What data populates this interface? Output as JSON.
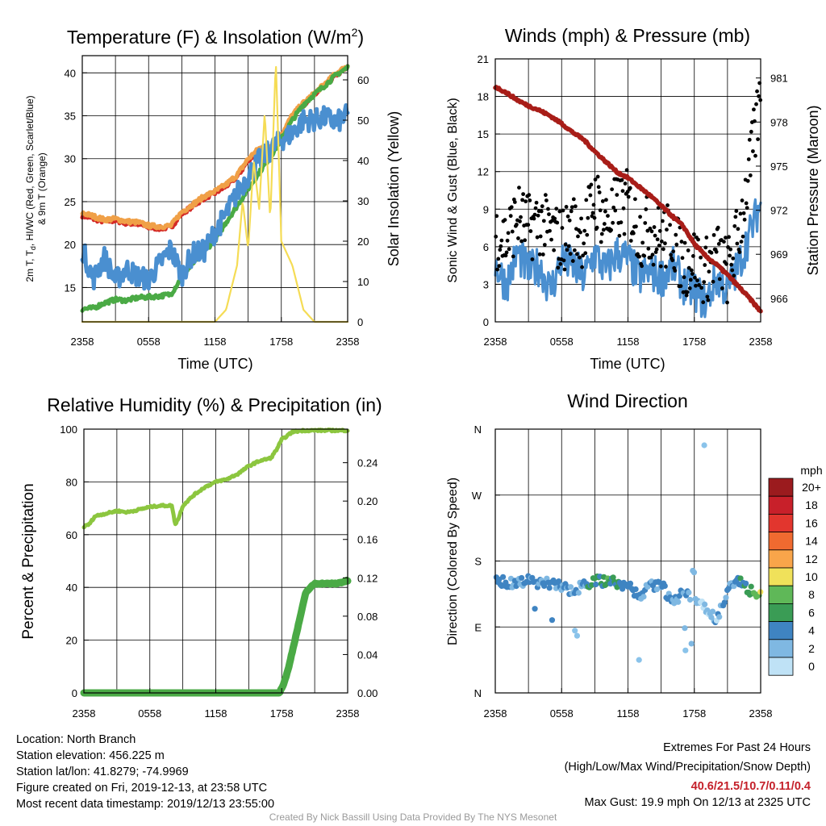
{
  "panels": {
    "temp": {
      "title_main": "Temperature (F) & Insolation (W/m",
      "title_sup": "2",
      "title_end": ")",
      "xlabel": "Time (UTC)",
      "ylabel_line1": "2m T, T",
      "ylabel_sub": "d",
      "ylabel_line1_end": ", HI/WC (Red, Green, Scarlet/Blue)",
      "ylabel_line2": "& 9m T (Orange)",
      "ylabel_right": "Solar Insolation (Yellow)"
    },
    "wind": {
      "title": "Winds (mph) & Pressure (mb)",
      "xlabel": "Time (UTC)",
      "ylabel": "Sonic Wind & Gust (Blue, Black)",
      "ylabel_right": "Station Pressure (Maroon)"
    },
    "rh": {
      "title": "Relative Humidity (%) & Precipitation (in)",
      "ylabel": "Percent & Precipitation"
    },
    "dir": {
      "title": "Wind Direction",
      "ylabel": "Direction (Colored By Speed)",
      "colorbar_title": "mph",
      "colorbar_labels": [
        "20+",
        "18",
        "16",
        "14",
        "12",
        "10",
        "8",
        "6",
        "4",
        "2",
        "0"
      ],
      "colorbar_colors": [
        "#9b1b1e",
        "#c8202a",
        "#e2362e",
        "#f06a30",
        "#f9a54a",
        "#f0e15a",
        "#5fb858",
        "#3a9c55",
        "#3f84c2",
        "#7fb8e2",
        "#bfe2f6"
      ]
    }
  },
  "info": {
    "location": "Location: North Branch",
    "elevation": "Station elevation: 456.225 m",
    "latlon": "Station lat/lon: 41.8279; -74.9969",
    "created": "Figure created on Fri, 2019-12-13, at 23:58 UTC",
    "recent": "Most recent data timestamp: 2019/12/13 23:55:00"
  },
  "extremes": {
    "title": "Extremes For Past 24 Hours",
    "subtitle": "(High/Low/Max Wind/Precipitation/Snow Depth)",
    "values": "40.6/21.5/10.7/0.11/0.4",
    "max_gust": "Max Gust: 19.9 mph On 12/13 at 2325 UTC"
  },
  "credit": "Created By Nick Bassill Using Data Provided By The NYS Mesonet",
  "chart_data": [
    {
      "id": "temperature",
      "type": "line",
      "x_ticks": [
        "2358",
        "0558",
        "1158",
        "1758",
        "2358"
      ],
      "x_range_hours": [
        0,
        24
      ],
      "ylim": [
        11,
        42
      ],
      "y_ticks": [
        15,
        20,
        25,
        30,
        35,
        40
      ],
      "y2lim": [
        0,
        66
      ],
      "y2_ticks": [
        0,
        10,
        20,
        30,
        40,
        50,
        60
      ],
      "grid": true,
      "series": [
        {
          "color": "#d42b27",
          "axis": "left",
          "x": [
            0,
            1,
            2,
            3,
            4,
            5,
            6,
            7,
            8,
            9,
            10,
            11,
            12,
            13,
            14,
            15,
            16,
            17,
            18,
            19,
            20,
            21,
            22,
            23,
            24
          ],
          "values": [
            23.4,
            23.0,
            22.7,
            22.8,
            22.5,
            22.4,
            22.0,
            21.9,
            22.0,
            23.6,
            24.5,
            25.4,
            26.0,
            26.8,
            27.9,
            29.8,
            31.0,
            31.3,
            32.6,
            34.9,
            36.3,
            37.4,
            38.6,
            39.8,
            40.6
          ]
        },
        {
          "color": "#f0a047",
          "axis": "left",
          "x": [
            0,
            1,
            2,
            3,
            4,
            5,
            6,
            7,
            8,
            9,
            10,
            11,
            12,
            13,
            14,
            15,
            16,
            17,
            18,
            19,
            20,
            21,
            22,
            23,
            24
          ],
          "values": [
            23.7,
            23.3,
            22.9,
            23.0,
            22.7,
            22.6,
            22.2,
            22.1,
            22.2,
            23.8,
            24.7,
            25.6,
            26.2,
            27.0,
            28.1,
            30.0,
            31.2,
            31.5,
            32.8,
            35.1,
            36.5,
            37.6,
            38.8,
            40.0,
            40.8
          ]
        },
        {
          "color": "#4aaa45",
          "axis": "left",
          "x": [
            0,
            1,
            2,
            3,
            4,
            5,
            6,
            7,
            8,
            9,
            10,
            11,
            12,
            13,
            14,
            15,
            16,
            17,
            18,
            19,
            20,
            21,
            22,
            23,
            24
          ],
          "values": [
            12.5,
            12.6,
            13.2,
            13.6,
            13.5,
            13.8,
            13.9,
            14.0,
            14.2,
            16.2,
            17.8,
            19.2,
            20.5,
            22.6,
            24.5,
            26.5,
            28.4,
            30.2,
            32.3,
            34.5,
            36.3,
            37.5,
            38.6,
            39.8,
            40.6
          ]
        },
        {
          "color": "#4a8fd0",
          "axis": "left",
          "x": [
            0,
            1,
            2,
            3,
            4,
            5,
            6,
            7,
            8,
            9,
            10,
            11,
            12,
            13,
            14,
            15,
            16,
            17,
            18,
            19,
            20,
            21,
            22,
            23,
            24
          ],
          "values": [
            19.5,
            16.0,
            18.5,
            15.8,
            17.2,
            16.3,
            15.9,
            17.8,
            19.5,
            16.5,
            19.0,
            19.2,
            21.5,
            23.5,
            26.0,
            28.0,
            29.8,
            31.0,
            32.2,
            33.0,
            34.5,
            34.5,
            34.8,
            34.2,
            35.1
          ]
        },
        {
          "color": "#f5dc55",
          "axis": "right",
          "x": [
            0,
            12.0,
            13.0,
            14.0,
            14.5,
            15.0,
            15.5,
            16.0,
            16.5,
            17.0,
            17.5,
            18.0,
            19.0,
            20.0,
            21.0,
            24
          ],
          "values": [
            0,
            0,
            3,
            14,
            30,
            18,
            40,
            28,
            52,
            25,
            65,
            20,
            14,
            3,
            0,
            0
          ]
        }
      ]
    },
    {
      "id": "winds",
      "type": "line",
      "x_ticks": [
        "2358",
        "0558",
        "1158",
        "1758",
        "2358"
      ],
      "x_range_hours": [
        0,
        24
      ],
      "ylim": [
        0,
        21
      ],
      "y_ticks": [
        0,
        3,
        6,
        9,
        12,
        15,
        18,
        21
      ],
      "y2lim": [
        964.4,
        982.3
      ],
      "y2_ticks": [
        966,
        969,
        972,
        975,
        978,
        981
      ],
      "grid": true,
      "series": [
        {
          "color": "#4a8fd0",
          "axis": "left",
          "x": [
            0,
            1,
            2,
            3,
            4,
            5,
            6,
            7,
            8,
            9,
            10,
            11,
            12,
            13,
            14,
            15,
            16,
            17,
            18,
            19,
            20,
            21,
            22,
            23,
            24
          ],
          "values": [
            4.5,
            3.0,
            5.5,
            4.0,
            4.5,
            2.5,
            5.0,
            4.5,
            3.5,
            5.5,
            4.0,
            5.5,
            5.0,
            3.5,
            4.0,
            3.5,
            4.5,
            3.0,
            2.5,
            1.5,
            3.5,
            2.5,
            4.5,
            7.0,
            9.5
          ]
        },
        {
          "color": "#000000",
          "axis": "left",
          "type": "scatter",
          "x": [
            0,
            1,
            2,
            3,
            4,
            5,
            6,
            7,
            8,
            9,
            10,
            11,
            12,
            13,
            14,
            15,
            16,
            17,
            18,
            19,
            20,
            21,
            22,
            23,
            24
          ],
          "values": [
            7.0,
            6.5,
            8.5,
            7.5,
            8.0,
            7.0,
            6.5,
            7.5,
            7.0,
            10.0,
            8.0,
            9.0,
            9.5,
            7.0,
            7.5,
            6.5,
            7.0,
            4.5,
            5.0,
            4.0,
            5.5,
            4.0,
            7.0,
            12.0,
            18.0
          ]
        },
        {
          "color": "#a81d18",
          "axis": "right",
          "x": [
            0,
            1,
            2,
            3,
            4,
            5,
            6,
            7,
            8,
            9,
            10,
            11,
            12,
            13,
            14,
            15,
            16,
            17,
            18,
            19,
            20,
            21,
            22,
            23,
            24
          ],
          "values": [
            980.4,
            980.0,
            979.5,
            979.1,
            978.8,
            978.4,
            977.9,
            977.3,
            976.8,
            976.0,
            975.3,
            974.6,
            974.2,
            973.6,
            973.0,
            972.3,
            971.6,
            970.9,
            969.7,
            968.9,
            968.3,
            967.6,
            966.8,
            966.0,
            965.1
          ]
        }
      ]
    },
    {
      "id": "humidity_precip",
      "type": "line",
      "x_ticks": [
        "2358",
        "0558",
        "1158",
        "1758",
        "2358"
      ],
      "x_range_hours": [
        0,
        24
      ],
      "ylim": [
        0,
        100
      ],
      "y_ticks": [
        0,
        20,
        40,
        60,
        80,
        100
      ],
      "y2lim": [
        0,
        0.275
      ],
      "y2_ticks": [
        "0.00",
        "0.04",
        "0.08",
        "0.12",
        "0.16",
        "0.20",
        "0.24"
      ],
      "grid": true,
      "series": [
        {
          "color": "#8cc63f",
          "axis": "left",
          "x": [
            0,
            0.5,
            1,
            2,
            3,
            4,
            5,
            6,
            7,
            8,
            8.3,
            8.6,
            9,
            10,
            11,
            12,
            13,
            14,
            15,
            16,
            17,
            17.5,
            18,
            19,
            20,
            21,
            22,
            23,
            24
          ],
          "values": [
            63,
            64,
            67,
            68,
            69,
            68.5,
            69.5,
            70.5,
            71,
            71,
            64,
            66,
            71,
            75,
            78,
            80,
            81,
            83,
            86,
            88,
            89,
            92,
            96,
            99,
            99.5,
            99.5,
            99.5,
            99.5,
            99.5
          ]
        },
        {
          "color": "#4aaa45",
          "axis": "right",
          "x": [
            0,
            17.8,
            18.2,
            18.6,
            19.0,
            19.4,
            19.8,
            20.2,
            21,
            22,
            23,
            24
          ],
          "values": [
            0,
            0,
            0.01,
            0.025,
            0.045,
            0.065,
            0.085,
            0.105,
            0.114,
            0.114,
            0.114,
            0.117
          ]
        }
      ]
    },
    {
      "id": "wind_direction",
      "type": "scatter",
      "x_ticks": [
        "2358",
        "0558",
        "1158",
        "1758",
        "2358"
      ],
      "x_range_hours": [
        0,
        24
      ],
      "y_ticks": [
        "N",
        "E",
        "S",
        "W",
        "N"
      ],
      "ylim_deg": [
        0,
        360
      ],
      "grid": true,
      "colorbar": {
        "title": "mph",
        "labels": [
          "0",
          "2",
          "4",
          "6",
          "8",
          "10",
          "12",
          "14",
          "16",
          "18",
          "20+"
        ]
      },
      "series": [
        {
          "name": "direction",
          "x": [
            0,
            1,
            2,
            3,
            4,
            5,
            6,
            7,
            8,
            9,
            10,
            11,
            12,
            13,
            14,
            15,
            16,
            17,
            18,
            19,
            20,
            21,
            22,
            23,
            24
          ],
          "values": [
            152,
            151,
            150,
            153,
            149,
            150,
            147,
            138,
            148,
            154,
            152,
            150,
            146,
            133,
            145,
            149,
            120,
            140,
            122,
            118,
            100,
            140,
            152,
            140,
            132
          ],
          "speed_mph": [
            4,
            4,
            4,
            3,
            4,
            4,
            3,
            2,
            4,
            5,
            6,
            5,
            4,
            3,
            3,
            4,
            2,
            3,
            2,
            1,
            2,
            3,
            4,
            6,
            9
          ]
        }
      ]
    }
  ]
}
